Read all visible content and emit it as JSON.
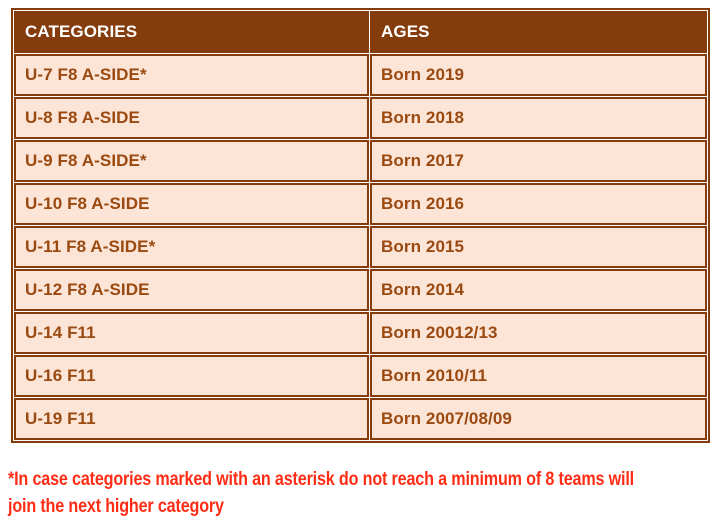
{
  "table": {
    "columns": [
      "CATEGORIES",
      "AGES"
    ],
    "rows": [
      [
        "U-7 F8 A-SIDE*",
        "Born 2019"
      ],
      [
        "U-8 F8 A-SIDE",
        "Born 2018"
      ],
      [
        "U-9 F8 A-SIDE*",
        "Born 2017"
      ],
      [
        "U-10 F8 A-SIDE",
        "Born 2016"
      ],
      [
        "U-11 F8 A-SIDE*",
        "Born 2015"
      ],
      [
        "U-12 F8 A-SIDE",
        "Born 2014"
      ],
      [
        "U-14 F11",
        "Born 20012/13"
      ],
      [
        "U-16 F11",
        "Born 2010/11"
      ],
      [
        "U-19 F11",
        "Born 2007/08/09"
      ]
    ]
  },
  "note": {
    "line1": "*In case categories marked with an asterisk do not reach a minimum of 8 teams will",
    "line2": "join the next higher category"
  },
  "colors": {
    "header-bg": "#843C0C",
    "header-text": "#FFFFFF",
    "row-bg": "#FCE4D6",
    "row-text": "#9A4A11",
    "border": "#843C0C",
    "note-red": "#FF2D16"
  }
}
